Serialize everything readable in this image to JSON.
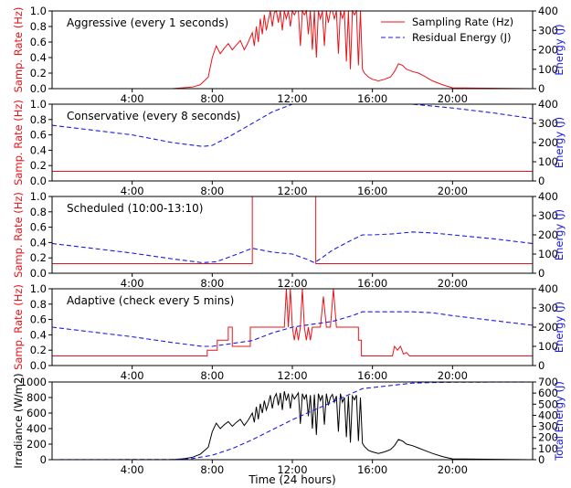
{
  "figure": {
    "xlabel": "Time (24 hours)",
    "xticks": [
      "4:00",
      "8:00",
      "12:00",
      "16:00",
      "20:00"
    ],
    "colors": {
      "sampling": "#e8141a",
      "energy": "#1a1ae8",
      "irradiance": "#000000",
      "axis": "#000000"
    }
  },
  "chart_data": [
    {
      "type": "line",
      "title": "Aggressive (every 1 seconds)",
      "ylabel_left": "Samp. Rate (Hz)",
      "ylabel_right": "Energy (J)",
      "ylim_left": [
        0,
        1.0
      ],
      "ylim_right": [
        0,
        400
      ],
      "yticks_left": [
        "0.0",
        "0.2",
        "0.4",
        "0.6",
        "0.8",
        "1.0"
      ],
      "yticks_right": [
        "0",
        "100",
        "200",
        "300",
        "400"
      ],
      "legend": {
        "placement": "top-right",
        "entries": [
          "Sampling Rate (Hz)",
          "Residual Energy (J)"
        ]
      },
      "series": [
        {
          "name": "Sampling Rate (Hz)",
          "axis": "left",
          "style": "solid",
          "x": [
            0,
            6.0,
            6.5,
            7.0,
            7.4,
            7.8,
            8.0,
            8.2,
            8.4,
            8.6,
            8.8,
            9.0,
            9.2,
            9.4,
            9.6,
            9.8,
            10.0,
            10.1,
            10.2,
            10.3,
            10.4,
            10.5,
            10.6,
            10.7,
            10.8,
            10.9,
            11.0,
            11.1,
            11.2,
            11.3,
            11.4,
            11.5,
            11.6,
            11.7,
            11.8,
            11.9,
            12.0,
            12.1,
            12.2,
            12.3,
            12.4,
            12.5,
            12.6,
            12.7,
            12.8,
            12.9,
            13.0,
            13.1,
            13.2,
            13.3,
            13.4,
            13.5,
            13.6,
            13.7,
            13.8,
            13.9,
            14.0,
            14.1,
            14.2,
            14.3,
            14.4,
            14.5,
            14.6,
            14.7,
            14.8,
            14.9,
            15.0,
            15.1,
            15.2,
            15.3,
            15.4,
            15.5,
            15.6,
            15.8,
            16.0,
            16.3,
            16.6,
            16.9,
            17.1,
            17.3,
            17.5,
            17.7,
            18.0,
            18.3,
            18.6,
            19.0,
            19.5,
            20.0,
            24.0
          ],
          "y": [
            0,
            0,
            0.01,
            0.02,
            0.05,
            0.15,
            0.4,
            0.55,
            0.45,
            0.52,
            0.58,
            0.5,
            0.56,
            0.62,
            0.5,
            0.6,
            0.72,
            0.55,
            0.8,
            0.6,
            0.9,
            0.7,
            0.95,
            0.75,
            0.88,
            1.0,
            0.8,
            0.98,
            1.0,
            0.85,
            1.0,
            0.75,
            1.0,
            0.9,
            1.0,
            0.8,
            1.0,
            0.95,
            1.0,
            1.0,
            0.55,
            1.0,
            0.95,
            1.0,
            0.7,
            1.0,
            0.5,
            1.0,
            0.4,
            1.0,
            0.9,
            1.0,
            0.55,
            1.0,
            0.85,
            1.0,
            1.0,
            0.9,
            1.0,
            0.45,
            1.0,
            0.9,
            1.0,
            0.35,
            1.0,
            0.25,
            1.0,
            0.95,
            1.0,
            0.3,
            1.0,
            0.25,
            0.2,
            0.15,
            0.12,
            0.1,
            0.12,
            0.15,
            0.22,
            0.32,
            0.3,
            0.25,
            0.22,
            0.2,
            0.16,
            0.1,
            0.05,
            0.01,
            0
          ]
        },
        {
          "name": "Residual Energy (J)",
          "axis": "right",
          "style": "dashed",
          "x": [
            0,
            24
          ],
          "y": [
            0,
            0
          ]
        }
      ]
    },
    {
      "type": "line",
      "title": "Conservative (every 8 seconds)",
      "ylabel_left": "Samp. Rate (Hz)",
      "ylabel_right": "Energy (J)",
      "ylim_left": [
        0,
        1.0
      ],
      "ylim_right": [
        0,
        400
      ],
      "yticks_left": [
        "0.0",
        "0.2",
        "0.4",
        "0.6",
        "0.8",
        "1.0"
      ],
      "yticks_right": [
        "0",
        "100",
        "200",
        "300",
        "400"
      ],
      "series": [
        {
          "name": "Sampling Rate (Hz)",
          "axis": "left",
          "style": "solid",
          "x": [
            0,
            24
          ],
          "y": [
            0.125,
            0.125
          ]
        },
        {
          "name": "Residual Energy (J)",
          "axis": "right",
          "style": "dashed",
          "x": [
            0,
            2,
            4,
            6,
            7.5,
            8,
            9,
            10,
            11,
            12,
            13,
            14,
            16,
            18,
            20,
            22,
            24
          ],
          "y": [
            290,
            265,
            240,
            200,
            180,
            185,
            240,
            300,
            360,
            400,
            400,
            400,
            400,
            400,
            380,
            355,
            325
          ]
        }
      ]
    },
    {
      "type": "line",
      "title": "Scheduled (10:00-13:10)",
      "ylabel_left": "Samp. Rate (Hz)",
      "ylabel_right": "Energy (J)",
      "ylim_left": [
        0,
        1.0
      ],
      "ylim_right": [
        0,
        400
      ],
      "yticks_left": [
        "0.0",
        "0.2",
        "0.4",
        "0.6",
        "0.8",
        "1.0"
      ],
      "yticks_right": [
        "0",
        "100",
        "200",
        "300",
        "400"
      ],
      "series": [
        {
          "name": "Sampling Rate (Hz)",
          "axis": "left",
          "style": "solid",
          "x": [
            0,
            10.0,
            10.0,
            13.17,
            13.17,
            24
          ],
          "y": [
            0.125,
            0.125,
            1.0,
            1.0,
            0.125,
            0.125
          ]
        },
        {
          "name": "Residual Energy (J)",
          "axis": "right",
          "style": "dashed",
          "x": [
            0,
            2,
            4,
            6,
            7.5,
            8.2,
            9,
            10,
            10.5,
            11,
            12,
            12.8,
            13.1,
            13.4,
            14,
            15,
            15.5,
            16,
            17,
            18,
            19,
            20,
            22,
            24
          ],
          "y": [
            155,
            130,
            105,
            75,
            55,
            60,
            90,
            130,
            120,
            110,
            100,
            70,
            55,
            75,
            120,
            175,
            200,
            200,
            205,
            215,
            210,
            200,
            180,
            155
          ]
        }
      ]
    },
    {
      "type": "line",
      "title": "Adaptive (check every 5 mins)",
      "ylabel_left": "Samp. Rate (Hz)",
      "ylabel_right": "Energy (J)",
      "ylim_left": [
        0,
        1.0
      ],
      "ylim_right": [
        0,
        400
      ],
      "yticks_left": [
        "0.0",
        "0.2",
        "0.4",
        "0.6",
        "0.8",
        "1.0"
      ],
      "yticks_right": [
        "0",
        "100",
        "200",
        "300",
        "400"
      ],
      "series": [
        {
          "name": "Sampling Rate (Hz)",
          "axis": "left",
          "style": "solid",
          "x": [
            0,
            7.75,
            7.75,
            8.25,
            8.25,
            8.8,
            8.8,
            9.0,
            9.0,
            9.9,
            9.9,
            10.0,
            10.0,
            11.6,
            11.7,
            11.8,
            11.9,
            12.0,
            12.1,
            12.2,
            12.3,
            12.4,
            12.5,
            12.6,
            12.7,
            12.8,
            12.9,
            13.0,
            13.1,
            13.4,
            13.55,
            13.7,
            13.9,
            14.05,
            14.2,
            14.35,
            14.5,
            14.65,
            14.8,
            15.3,
            15.3,
            15.45,
            15.45,
            17.0,
            17.1,
            17.25,
            17.4,
            17.55,
            17.7,
            17.85,
            24
          ],
          "y": [
            0.125,
            0.125,
            0.2,
            0.2,
            0.33,
            0.33,
            0.5,
            0.5,
            0.25,
            0.25,
            0.5,
            0.5,
            0.5,
            0.5,
            1.0,
            0.5,
            1.0,
            0.5,
            0.33,
            0.5,
            0.33,
            0.5,
            1.0,
            0.5,
            0.33,
            0.5,
            0.33,
            0.5,
            0.5,
            0.5,
            0.9,
            0.5,
            0.5,
            1.0,
            0.5,
            0.5,
            0.5,
            0.5,
            0.5,
            0.5,
            0.33,
            0.33,
            0.125,
            0.125,
            0.25,
            0.2,
            0.25,
            0.15,
            0.17,
            0.125,
            0.125
          ]
        },
        {
          "name": "Residual Energy (J)",
          "axis": "right",
          "style": "dashed",
          "x": [
            0,
            2,
            4,
            6,
            7.5,
            8,
            9,
            10,
            11,
            12,
            13,
            14,
            15,
            15.5,
            16,
            17,
            18,
            19,
            20,
            22,
            24
          ],
          "y": [
            200,
            175,
            150,
            120,
            100,
            100,
            115,
            130,
            170,
            200,
            215,
            230,
            260,
            280,
            280,
            280,
            280,
            275,
            260,
            235,
            210
          ]
        }
      ]
    },
    {
      "type": "line",
      "ylabel_left": "Irradiance (W/m2)",
      "ylabel_right": "Total Energy (J)",
      "xlabel": "Time (24 hours)",
      "ylim_left": [
        0,
        1000
      ],
      "ylim_right": [
        0,
        700
      ],
      "yticks_left": [
        "0",
        "200",
        "400",
        "600",
        "800",
        "1000"
      ],
      "yticks_right": [
        "0",
        "100",
        "200",
        "300",
        "400",
        "500",
        "600",
        "700"
      ],
      "series": [
        {
          "name": "Irradiance (W/m2)",
          "axis": "left",
          "style": "solid",
          "x": [
            0,
            6.0,
            6.5,
            7.0,
            7.4,
            7.8,
            8.0,
            8.2,
            8.4,
            8.6,
            8.8,
            9.0,
            9.2,
            9.4,
            9.6,
            9.8,
            10.0,
            10.1,
            10.2,
            10.3,
            10.4,
            10.5,
            10.6,
            10.7,
            10.8,
            10.9,
            11.0,
            11.1,
            11.2,
            11.3,
            11.4,
            11.5,
            11.6,
            11.7,
            11.8,
            11.9,
            12.0,
            12.1,
            12.2,
            12.3,
            12.4,
            12.5,
            12.6,
            12.7,
            12.8,
            12.9,
            13.0,
            13.1,
            13.2,
            13.3,
            13.4,
            13.5,
            13.6,
            13.7,
            13.8,
            13.9,
            14.0,
            14.1,
            14.2,
            14.3,
            14.4,
            14.5,
            14.6,
            14.7,
            14.8,
            14.9,
            15.0,
            15.1,
            15.2,
            15.3,
            15.4,
            15.5,
            15.6,
            15.8,
            16.0,
            16.3,
            16.6,
            16.9,
            17.1,
            17.3,
            17.5,
            17.7,
            18.0,
            18.3,
            18.6,
            19.0,
            19.5,
            20.0,
            24.0
          ],
          "y": [
            0,
            0,
            10,
            30,
            70,
            160,
            360,
            470,
            400,
            450,
            490,
            430,
            480,
            520,
            440,
            510,
            600,
            480,
            680,
            520,
            720,
            600,
            760,
            640,
            720,
            830,
            660,
            800,
            850,
            700,
            860,
            640,
            880,
            760,
            850,
            660,
            840,
            780,
            820,
            860,
            460,
            850,
            780,
            840,
            560,
            830,
            400,
            840,
            320,
            850,
            760,
            830,
            450,
            850,
            700,
            800,
            840,
            740,
            820,
            360,
            850,
            740,
            800,
            290,
            820,
            220,
            820,
            770,
            830,
            240,
            800,
            210,
            170,
            120,
            100,
            80,
            100,
            130,
            180,
            260,
            240,
            200,
            180,
            150,
            120,
            80,
            40,
            10,
            0
          ]
        },
        {
          "name": "Total Energy (J)",
          "axis": "right",
          "style": "dashed",
          "x": [
            0,
            6,
            7,
            8,
            9,
            10,
            11,
            12,
            13,
            14,
            15,
            15.5,
            16,
            17,
            18,
            19,
            20,
            24
          ],
          "y": [
            0,
            2,
            10,
            40,
            100,
            180,
            270,
            360,
            440,
            520,
            600,
            640,
            650,
            670,
            690,
            695,
            698,
            700
          ]
        }
      ]
    }
  ]
}
